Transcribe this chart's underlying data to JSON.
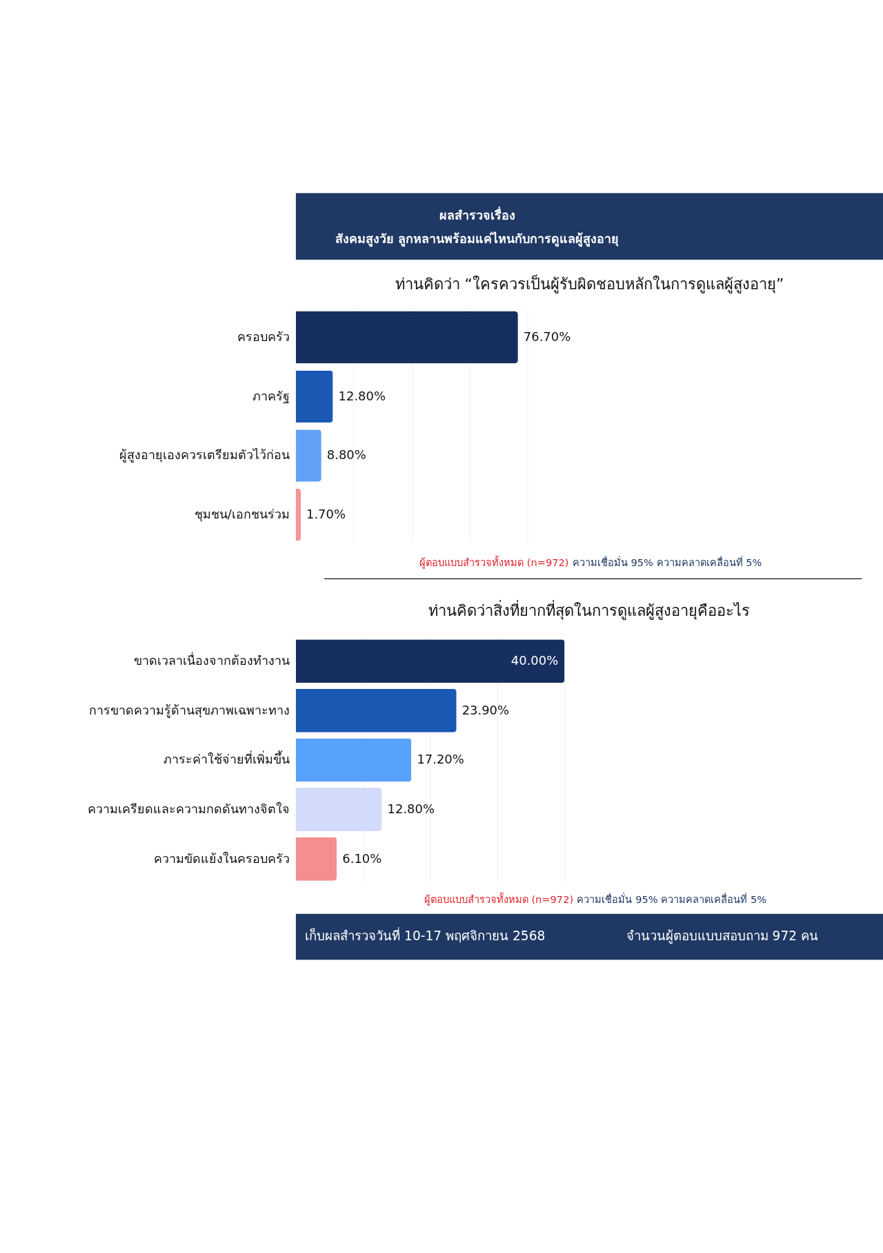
{
  "chart_data": [
    {
      "type": "bar",
      "orientation": "horizontal",
      "title": "ท่านคิดว่า “ใครควรเป็นผู้รับผิดชอบหลักในการดูแลผู้สูงอายุ”",
      "categories": [
        "ครอบครัว",
        "ภาครัฐ",
        "ผู้สูงอายุเองควรเตรียมตัวไว้ก่อน",
        "ชุมชน/เอกชนร่วม"
      ],
      "values": [
        76.7,
        12.8,
        8.8,
        1.7
      ],
      "value_labels": [
        "76.70%",
        "12.80%",
        "8.80%",
        "1.70%"
      ],
      "colors": [
        "#172f5f",
        "#1a58b3",
        "#62a0f8",
        "#f49494"
      ],
      "grid": "x",
      "tick_labels": "y",
      "legend": false,
      "annotations": [
        "ผลสำรวจเรื่อง",
        "สังคมสูงวัย ลูกหลานพร้อมแค่ไหนกับการดูแลผู้สูงอายุ",
        "ผู้ตอบแบบสำรวจทั้งหมด (n=972)",
        "ความเชื่อมั่น 95% ความคลาดเคลื่อนที่ 5%"
      ]
    },
    {
      "type": "bar",
      "orientation": "horizontal",
      "title": "ท่านคิดว่าสิ่งที่ยากที่สุดในการดูแลผู้สูงอายุคืออะไร",
      "categories": [
        "ขาดเวลาเนื่องจากต้องทำงาน",
        "การขาดความรู้ด้านสุขภาพเฉพาะทาง",
        "ภาระค่าใช้จ่ายที่เพิ่มขึ้น",
        "ความเครียดและความกดดันทางจิตใจ",
        "ความขัดแย้งในครอบครัว"
      ],
      "values": [
        40.0,
        23.9,
        17.2,
        12.8,
        6.1
      ],
      "value_labels": [
        "40.00%",
        "23.90%",
        "17.20%",
        "12.80%",
        "6.10%"
      ],
      "colors": [
        "#172f5f",
        "#1a58b3",
        "#58a2fb",
        "#d2dbfc",
        "#f58e8e"
      ],
      "grid": "x",
      "tick_labels": "y",
      "legend": false,
      "annotations": [
        "ผู้ตอบแบบสำรวจทั้งหมด (n=972)",
        "ความเชื่อมั่น 95% ความคลาดเคลื่อนที่ 5%",
        "เก็บผลสำรวจวันที่ 10-17 พฤศจิกายน 2568",
        "จำนวนผู้ตอบแบบสอบถาม 972 คน"
      ]
    }
  ]
}
